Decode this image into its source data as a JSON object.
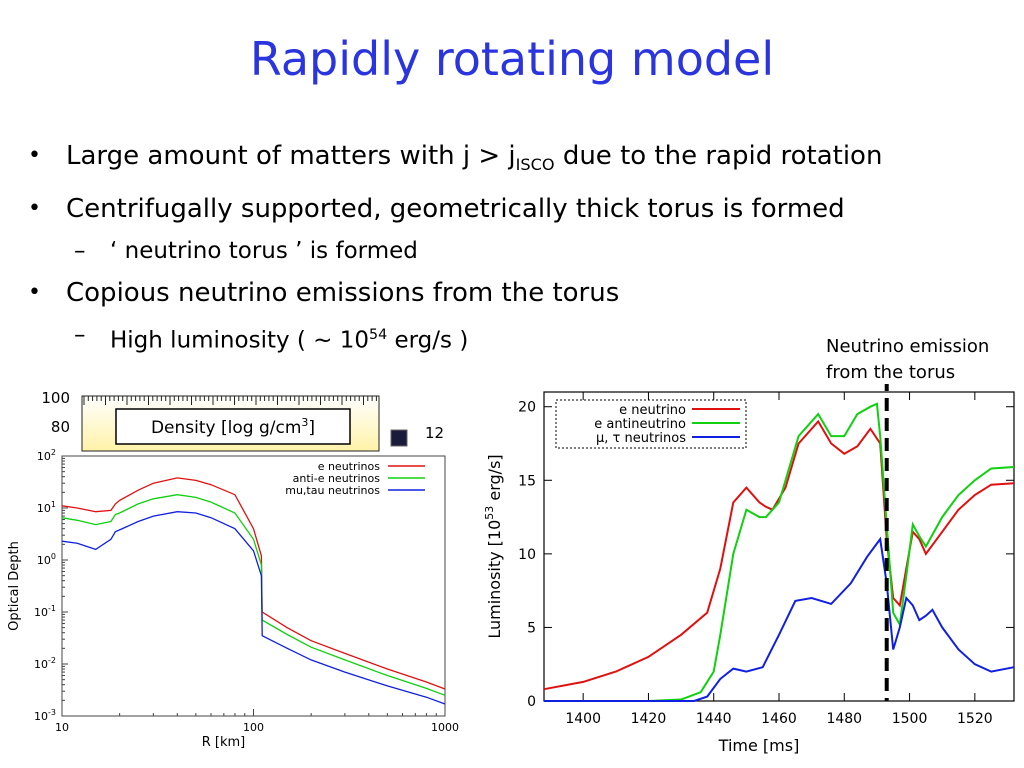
{
  "slide": {
    "title": "Rapidly rotating model",
    "bullet1_pre": "Large amount of matters with j > j",
    "bullet1_sub": "ISCO",
    "bullet1_post": " due to the rapid rotation",
    "bullet2": "Centrifugally supported, geometrically thick torus is formed",
    "bullet2a": "‘ neutrino torus ’ is formed",
    "bullet3": "Copious neutrino emissions from the torus",
    "bullet3a_pre": "High luminosity ( ~ 10",
    "bullet3a_sup": "54",
    "bullet3a_post": " erg/s )",
    "note_line1": "Neutrino emission",
    "note_line2": "from the torus"
  },
  "density_strip": {
    "label_pre": "Density [log g/cm",
    "label_sup": "3",
    "label_post": "]",
    "ticks_left": [
      "100",
      "80"
    ],
    "colorbar_value": "12"
  },
  "colors": {
    "title": "#2a35e0",
    "red": "#e01010",
    "green": "#10d010",
    "blue": "#1020e0"
  },
  "chart_data": [
    {
      "type": "line",
      "ylabel": "Optical Depth",
      "xlabel": "R [km]",
      "xscale": "log",
      "yscale": "log",
      "xlim": [
        10,
        1000
      ],
      "ylim": [
        0.001,
        100
      ],
      "xtick_labels": [
        "10",
        "100",
        "1000"
      ],
      "ytick_labels": [
        "10-3",
        "10-2",
        "10-1",
        "100",
        "101",
        "102"
      ],
      "legend_position": "top-right",
      "series": [
        {
          "name": "e neutrinos",
          "color": "#e01010",
          "x": [
            10,
            12,
            15,
            18,
            19,
            20,
            25,
            30,
            40,
            50,
            60,
            80,
            100,
            110,
            111,
            150,
            200,
            300,
            500,
            800,
            1000
          ],
          "y": [
            11,
            10,
            8.5,
            9,
            12,
            14,
            22,
            30,
            38,
            34,
            28,
            18,
            4,
            1.2,
            0.1,
            0.05,
            0.028,
            0.016,
            0.008,
            0.0045,
            0.0033
          ]
        },
        {
          "name": "anti-e neutrinos",
          "color": "#10d010",
          "x": [
            10,
            12,
            15,
            18,
            19,
            20,
            25,
            30,
            40,
            50,
            60,
            80,
            100,
            110,
            111,
            150,
            200,
            300,
            500,
            800,
            1000
          ],
          "y": [
            6.5,
            5.8,
            4.8,
            5.5,
            7.5,
            8,
            12,
            15,
            18,
            16,
            13,
            8,
            2.5,
            0.8,
            0.07,
            0.037,
            0.021,
            0.012,
            0.006,
            0.0034,
            0.0025
          ]
        },
        {
          "name": "mu,tau neutrinos",
          "color": "#1020e0",
          "x": [
            10,
            12,
            15,
            18,
            19,
            20,
            25,
            30,
            40,
            50,
            60,
            80,
            100,
            110,
            111,
            150,
            200,
            300,
            500,
            800,
            1000
          ],
          "y": [
            2.3,
            2.1,
            1.6,
            2.5,
            3.5,
            3.8,
            5.5,
            7,
            8.5,
            8,
            6.5,
            4,
            1.5,
            0.5,
            0.035,
            0.02,
            0.012,
            0.007,
            0.0038,
            0.0023,
            0.0017
          ]
        }
      ]
    },
    {
      "type": "line",
      "ylabel": "Luminosity [10^53 erg/s]",
      "xlabel": "Time [ms]",
      "xlim": [
        1388,
        1532
      ],
      "ylim": [
        0,
        21
      ],
      "xtick_labels": [
        "1400",
        "1420",
        "1440",
        "1460",
        "1480",
        "1500",
        "1520"
      ],
      "ytick_labels": [
        "0",
        "5",
        "10",
        "15",
        "20"
      ],
      "legend_position": "top-left",
      "marker_line_x": 1493,
      "series": [
        {
          "name": "e neutrino",
          "color": "#e01010",
          "x": [
            1388,
            1400,
            1410,
            1420,
            1430,
            1438,
            1442,
            1446,
            1450,
            1454,
            1456,
            1458,
            1462,
            1466,
            1472,
            1476,
            1480,
            1484,
            1488,
            1491,
            1493,
            1495,
            1497,
            1499,
            1501,
            1503,
            1505,
            1510,
            1515,
            1520,
            1525,
            1532
          ],
          "y": [
            0.8,
            1.3,
            2.0,
            3.0,
            4.5,
            6.0,
            9.0,
            13.5,
            14.5,
            13.5,
            13.2,
            13.0,
            14.5,
            17.5,
            19.0,
            17.5,
            16.8,
            17.3,
            18.5,
            17.5,
            11.0,
            7.0,
            6.5,
            9.0,
            11.5,
            11.0,
            10.0,
            11.5,
            13.0,
            14.0,
            14.7,
            14.8
          ]
        },
        {
          "name": "e antineutrino",
          "color": "#10d010",
          "x": [
            1388,
            1400,
            1410,
            1420,
            1430,
            1436,
            1440,
            1442,
            1446,
            1450,
            1454,
            1456,
            1460,
            1466,
            1472,
            1476,
            1480,
            1484,
            1488,
            1490,
            1491,
            1493,
            1495,
            1497,
            1499,
            1501,
            1503,
            1505,
            1510,
            1515,
            1520,
            1525,
            1532
          ],
          "y": [
            0,
            0,
            0,
            0,
            0.1,
            0.6,
            2.0,
            4.5,
            10.0,
            13.0,
            12.5,
            12.5,
            13.5,
            18.0,
            19.5,
            18.0,
            18.0,
            19.5,
            20.0,
            20.2,
            18.0,
            12.0,
            6.0,
            5.2,
            8.5,
            12.0,
            11.2,
            10.5,
            12.5,
            14.0,
            15.0,
            15.8,
            15.9
          ]
        },
        {
          "name": "μ, τ neutrinos",
          "color": "#1020e0",
          "x": [
            1388,
            1420,
            1434,
            1438,
            1442,
            1446,
            1450,
            1455,
            1460,
            1465,
            1470,
            1476,
            1482,
            1487,
            1491,
            1493,
            1495,
            1497,
            1499,
            1501,
            1503,
            1505,
            1507,
            1510,
            1515,
            1520,
            1525,
            1532
          ],
          "y": [
            0,
            0,
            0,
            0.3,
            1.5,
            2.2,
            2.0,
            2.3,
            4.5,
            6.8,
            7.0,
            6.6,
            8.0,
            9.8,
            11.0,
            8.0,
            3.5,
            5.0,
            7.0,
            6.5,
            5.5,
            5.8,
            6.2,
            5.0,
            3.5,
            2.5,
            2.0,
            2.3
          ]
        }
      ]
    }
  ]
}
